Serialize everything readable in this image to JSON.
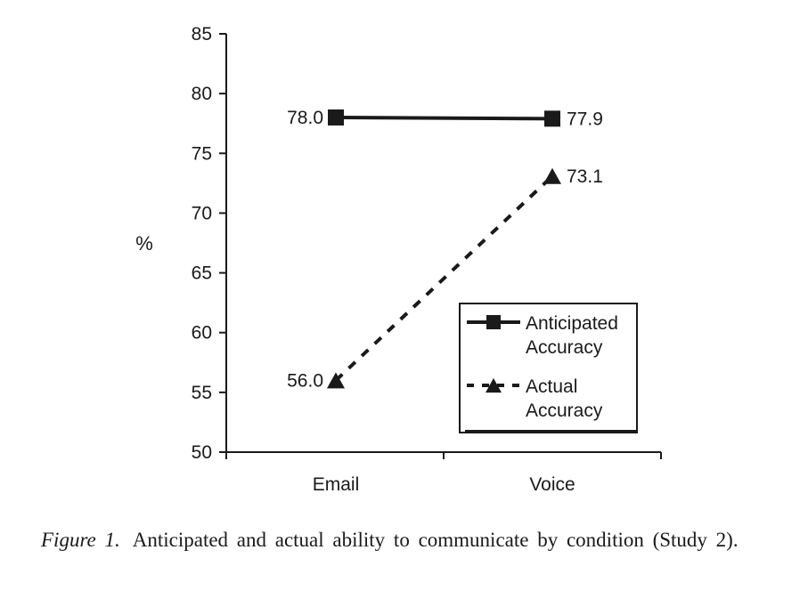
{
  "chart_data": {
    "type": "line",
    "title": "",
    "xlabel": "",
    "ylabel": "%",
    "ylim": [
      50,
      85
    ],
    "yticks": [
      50,
      55,
      60,
      65,
      70,
      75,
      80,
      85
    ],
    "categories": [
      "Email",
      "Voice"
    ],
    "grid": false,
    "legend_position": "bottom-right",
    "series": [
      {
        "name": "Anticipated Accuracy",
        "legend_lines": [
          "Anticipated",
          "Accuracy"
        ],
        "values": [
          78.0,
          77.9
        ],
        "labels": [
          "78.0",
          "77.9"
        ],
        "marker": "square",
        "line_style": "solid",
        "color": "#1a1a1a"
      },
      {
        "name": "Actual Accuracy",
        "legend_lines": [
          "Actual",
          "Accuracy"
        ],
        "values": [
          56.0,
          73.1
        ],
        "labels": [
          "56.0",
          "73.1"
        ],
        "marker": "triangle",
        "line_style": "dashed",
        "color": "#1a1a1a"
      }
    ]
  },
  "caption": {
    "label": "Figure 1.",
    "text": "Anticipated and actual ability to communicate by condition (Study 2)."
  }
}
